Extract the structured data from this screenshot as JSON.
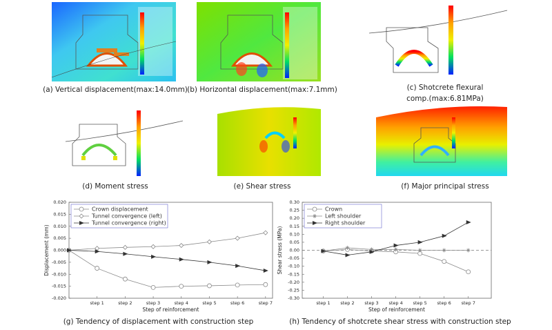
{
  "figures": [
    {
      "caption": [
        "(a) Vertical displacement(max:14.0mm)"
      ]
    },
    {
      "caption": [
        "(b) Horizontal displacement(max:7.1mm)"
      ]
    },
    {
      "caption": [
        "(c) Shotcrete flexural",
        "comp.(max:6.81MPa)"
      ]
    },
    {
      "caption": [
        "(d) Moment stress"
      ]
    },
    {
      "caption": [
        "(e) Shear stress"
      ]
    },
    {
      "caption": [
        "(f) Major principal stress"
      ]
    }
  ],
  "chart_data": [
    {
      "type": "line",
      "caption": "(g) Tendency of displacement with construction step",
      "x_label": "Step of reinforcement",
      "y_label": "Displacement (mm)",
      "categories": [
        null,
        "step 1",
        "step 2",
        "step 3",
        "step 4",
        "step 5",
        "step 6",
        "step 7"
      ],
      "ylim": [
        -0.02,
        0.02
      ],
      "yticks": [
        {
          "value": 0.02,
          "label": "0.020"
        },
        {
          "value": 0.015,
          "label": "0.015"
        },
        {
          "value": 0.01,
          "label": "0.010"
        },
        {
          "value": 0.005,
          "label": "0.005"
        },
        {
          "value": 0,
          "label": "0.000"
        },
        {
          "value": -0.005,
          "label": "-0.005"
        },
        {
          "value": -0.01,
          "label": "-0.010"
        },
        {
          "value": -0.015,
          "label": "-0.015"
        },
        {
          "value": -0.02,
          "label": "-0.020"
        }
      ],
      "legend": "upper left",
      "zero_line": false,
      "series": [
        {
          "name": "Crown displacement",
          "color": "#888888",
          "marker": "circle",
          "values": [
            0,
            -0.0075,
            -0.012,
            -0.0155,
            -0.015,
            -0.0148,
            -0.0145,
            -0.0143
          ]
        },
        {
          "name": "Tunnel convergence (left)",
          "color": "#888888",
          "marker": "diamond",
          "values": [
            0,
            0.0008,
            0.0012,
            0.0015,
            0.002,
            0.0035,
            0.005,
            0.0073
          ]
        },
        {
          "name": "Tunnel convergence (right)",
          "color": "#333333",
          "marker": "triangle",
          "values": [
            0,
            -0.0005,
            -0.0015,
            -0.0027,
            -0.0038,
            -0.005,
            -0.0065,
            -0.0085
          ]
        }
      ]
    },
    {
      "type": "line",
      "caption": "(h) Tendency of shotcrete shear stress with construction step",
      "x_label": "Step of reinforcement",
      "y_label": "Shear stress (MPa)",
      "categories": [
        "step 1",
        "step 2",
        "step 3",
        "step 4",
        "step 5",
        "step 6",
        "step 7"
      ],
      "ylim": [
        -0.3,
        0.3
      ],
      "yticks": [
        {
          "value": 0.3,
          "label": "0.30"
        },
        {
          "value": 0.25,
          "label": "0.25"
        },
        {
          "value": 0.2,
          "label": "0.20"
        },
        {
          "value": 0.15,
          "label": "0.15"
        },
        {
          "value": 0.1,
          "label": "0.10"
        },
        {
          "value": 0.05,
          "label": "0.05"
        },
        {
          "value": 0,
          "label": "0.00"
        },
        {
          "value": -0.05,
          "label": "-0.05"
        },
        {
          "value": -0.1,
          "label": "-0.10"
        },
        {
          "value": -0.15,
          "label": "-0.15"
        },
        {
          "value": -0.2,
          "label": "-0.20"
        },
        {
          "value": -0.25,
          "label": "-0.25"
        },
        {
          "value": -0.3,
          "label": "-0.30"
        }
      ],
      "legend": "upper left",
      "zero_line": true,
      "series": [
        {
          "name": "Crown",
          "color": "#888888",
          "marker": "circle",
          "values": [
            -0.005,
            0.005,
            -0.005,
            -0.01,
            -0.02,
            -0.07,
            -0.135
          ]
        },
        {
          "name": "Left shoulder",
          "color": "#888888",
          "marker": "plus",
          "values": [
            -0.005,
            0.015,
            0.005,
            0.005,
            0,
            0,
            0
          ]
        },
        {
          "name": "Right shoulder",
          "color": "#333333",
          "marker": "triangle",
          "values": [
            -0.005,
            -0.03,
            -0.01,
            0.03,
            0.05,
            0.09,
            0.175
          ]
        }
      ]
    }
  ]
}
